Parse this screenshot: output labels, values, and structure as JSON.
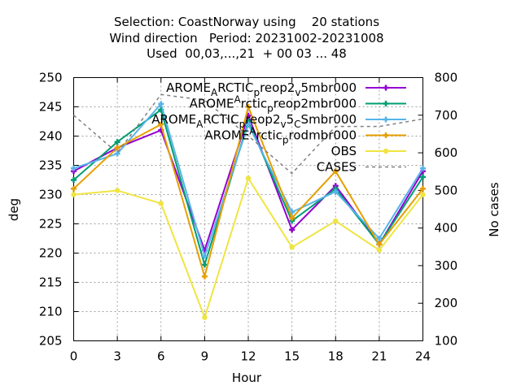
{
  "chart_data": {
    "type": "line",
    "title_lines": [
      "Selection: CoastNorway using    20 stations",
      "Wind direction   Period: 20231002-20231008",
      "Used  00,03,...,21  + 00 03 ... 48"
    ],
    "xlabel": "Hour",
    "ylabel": "deg",
    "y2label": "No cases",
    "xlim": [
      0,
      24
    ],
    "ylim": [
      205,
      250
    ],
    "y2lim": [
      100,
      800
    ],
    "x": [
      0,
      3,
      6,
      9,
      12,
      15,
      18,
      21,
      24
    ],
    "xticks": [
      "0",
      "3",
      "6",
      "9",
      "12",
      "15",
      "18",
      "21",
      "24"
    ],
    "yticks": [
      "205",
      "210",
      "215",
      "220",
      "225",
      "230",
      "235",
      "240",
      "245",
      "250"
    ],
    "y2ticks": [
      "100",
      "200",
      "300",
      "400",
      "500",
      "600",
      "700",
      "800"
    ],
    "grid": true,
    "legend_position": "top-right",
    "series": [
      {
        "name": "AROME_ARCTIC_preop2_v5mbr000",
        "legend_parts": [
          "AROME",
          "A",
          "RCTIC",
          "p",
          "reop2",
          "v",
          "5mbr000"
        ],
        "legend_shift": [
          "none",
          "sub",
          "none",
          "sub",
          "none",
          "sub",
          "none"
        ],
        "color": "#9400d3",
        "marker": "plus",
        "axis": "y",
        "values": [
          234.0,
          238.0,
          241.0,
          220.5,
          243.5,
          224.0,
          231.5,
          221.5,
          234.0
        ]
      },
      {
        "name": "AROME_Arctic_preop2mbr000",
        "legend_parts": [
          "AROME",
          "A",
          "rctic",
          "p",
          "reop2mbr000"
        ],
        "legend_shift": [
          "none",
          "sup",
          "none",
          "sub",
          "none"
        ],
        "color": "#009e73",
        "marker": "plus",
        "axis": "y",
        "values": [
          232.5,
          239.0,
          244.5,
          218.0,
          242.5,
          225.5,
          231.0,
          221.5,
          233.0
        ]
      },
      {
        "name": "AROME_ARCTIC_preop2_v5_CSmbr000",
        "legend_parts": [
          "AROME",
          "A",
          "RCTIC",
          "p",
          "reop2",
          "v",
          "5",
          "C",
          "Smbr000"
        ],
        "legend_shift": [
          "none",
          "sub",
          "none",
          "sub",
          "none",
          "sub",
          "none",
          "sub",
          "none"
        ],
        "color": "#56b4e9",
        "marker": "plus",
        "axis": "y",
        "values": [
          234.5,
          237.0,
          245.5,
          219.5,
          242.0,
          227.0,
          230.5,
          222.5,
          234.5
        ]
      },
      {
        "name": "AROME_Arctic_prodmbr000",
        "legend_parts": [
          "AROME",
          "A",
          "rctic",
          "p",
          "rodmbr000"
        ],
        "legend_shift": [
          "none",
          "sup",
          "none",
          "sub",
          "none"
        ],
        "color": "#e69f00",
        "marker": "plus",
        "axis": "y",
        "values": [
          231.0,
          238.0,
          242.0,
          216.0,
          245.0,
          226.0,
          234.0,
          221.5,
          231.0
        ]
      },
      {
        "name": "OBS",
        "legend_parts": [
          "OBS"
        ],
        "legend_shift": [
          "none"
        ],
        "color": "#f0e442",
        "marker": "dot",
        "axis": "y",
        "values": [
          230.0,
          230.7,
          228.5,
          209.0,
          232.8,
          221.0,
          225.5,
          220.5,
          230.0
        ]
      },
      {
        "name": "CASES",
        "legend_parts": [
          "CASES"
        ],
        "legend_shift": [
          "none"
        ],
        "color": "#808080",
        "marker": "none",
        "dashed": true,
        "axis": "y2",
        "values": [
          700,
          600,
          755,
          740,
          645,
          545,
          670,
          670,
          690
        ]
      }
    ]
  }
}
